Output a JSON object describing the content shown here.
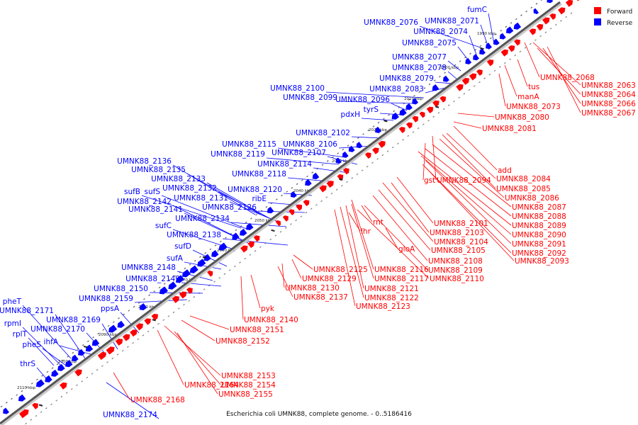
{
  "caption": "Escherichia coli UMNK88, complete genome. - 0..5186416",
  "legend": {
    "forward": {
      "label": "Forward",
      "color": "#ff0000"
    },
    "reverse": {
      "label": "Reverse",
      "color": "#0000ff"
    }
  },
  "kbp_ticks": [
    "1990 kbp",
    "2000 kbp",
    "2010 kbp",
    "2020 kbp",
    "2030 kbp",
    "2040 kbp",
    "2050 kbp",
    "2060 kbp",
    "2070 kbp",
    "2080 kbp",
    "2090 kbp",
    "2100 kbp",
    "2110 kbp"
  ],
  "reverse_labels": [
    "fumC",
    "UMNK88_2076",
    "UMNK88_2071",
    "UMNK88_2074",
    "UMNK88_2075",
    "UMNK88_2077",
    "UMNK88_2078",
    "UMNK88_2079",
    "UMNK88_2083",
    "UMNK88_2100",
    "UMNK88_2099",
    "UMNK88_2096",
    "tyrS",
    "pdxH",
    "UMNK88_2102",
    "UMNK88_2106",
    "UMNK88_2115",
    "UMNK88_2107",
    "UMNK88_2119",
    "UMNK88_2114",
    "UMNK88_2118",
    "UMNK88_2136",
    "UMNK88_2135",
    "UMNK88_2133",
    "UMNK88_2132",
    "UMNK88_2120",
    "ribE",
    "sufB",
    "sufS",
    "UMNK88_2131",
    "UMNK88_2142",
    "UMNK88_2126",
    "UMNK88_2141",
    "UMNK88_2134",
    "sufC",
    "UMNK88_2138",
    "sufD",
    "sufA",
    "UMNK88_2148",
    "UMNK88_2149",
    "UMNK88_2150",
    "UMNK88_2159",
    "pheT",
    "ppsA",
    "UMNK88_2171",
    "UMNK88_2169",
    "rpmI",
    "UMNK88_2170",
    "rplT",
    "ihfA",
    "pheS",
    "thrS",
    "UMNK88_2174"
  ],
  "forward_labels": [
    "UMNK88_2068",
    "tus",
    "UMNK88_2063",
    "manA",
    "UMNK88_2064",
    "UMNK88_2066",
    "UMNK88_2073",
    "UMNK88_2067",
    "UMNK88_2080",
    "UMNK88_2081",
    "add",
    "gst",
    "UMNK88_2094",
    "UMNK88_2084",
    "UMNK88_2085",
    "UMNK88_2086",
    "UMNK88_2087",
    "UMNK88_2088",
    "UMNK88_2089",
    "rnt",
    "UMNK88_2101",
    "lhr",
    "UMNK88_2103",
    "UMNK88_2090",
    "UMNK88_2104",
    "UMNK88_2091",
    "gloA",
    "UMNK88_2105",
    "UMNK88_2092",
    "UMNK88_2108",
    "UMNK88_2093",
    "UMNK88_2125",
    "UMNK88_2116",
    "UMNK88_2109",
    "UMNK88_2129",
    "UMNK88_2117",
    "UMNK88_2110",
    "UMNK88_2130",
    "UMNK88_2121",
    "UMNK88_2137",
    "UMNK88_2122",
    "pyk",
    "UMNK88_2123",
    "UMNK88_2140",
    "UMNK88_2151",
    "UMNK88_2152",
    "UMNK88_2153",
    "UMNK88_2164",
    "UMNK88_2154",
    "UMNK88_2155",
    "UMNK88_2168"
  ]
}
